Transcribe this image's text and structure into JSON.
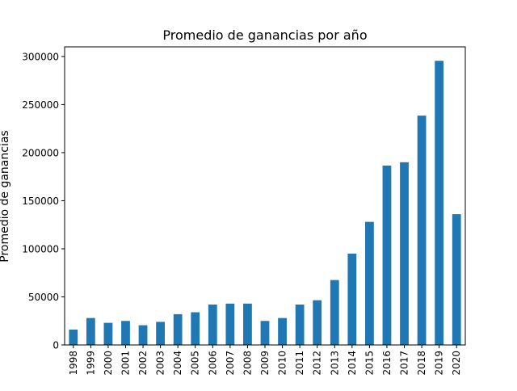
{
  "chart_data": {
    "type": "bar",
    "title": "Promedio de ganancias por año",
    "xlabel": "",
    "ylabel": "Promedio de ganancias",
    "categories": [
      "1998",
      "1999",
      "2000",
      "2001",
      "2002",
      "2003",
      "2004",
      "2005",
      "2006",
      "2007",
      "2008",
      "2009",
      "2010",
      "2011",
      "2012",
      "2013",
      "2014",
      "2015",
      "2016",
      "2017",
      "2018",
      "2019",
      "2020"
    ],
    "values": [
      16000,
      28000,
      23000,
      25000,
      20500,
      24000,
      32000,
      34000,
      42000,
      43000,
      43000,
      25000,
      28000,
      42000,
      46500,
      67500,
      95000,
      128000,
      186500,
      190000,
      238500,
      295500,
      136000
    ],
    "yticks": [
      0,
      50000,
      100000,
      150000,
      200000,
      250000,
      300000
    ],
    "ytick_labels": [
      "0",
      "50000",
      "100000",
      "150000",
      "200000",
      "250000",
      "300000"
    ],
    "ylim": [
      0,
      310000
    ],
    "grid": false,
    "legend": "none",
    "bar_color": "#1f77b4"
  }
}
